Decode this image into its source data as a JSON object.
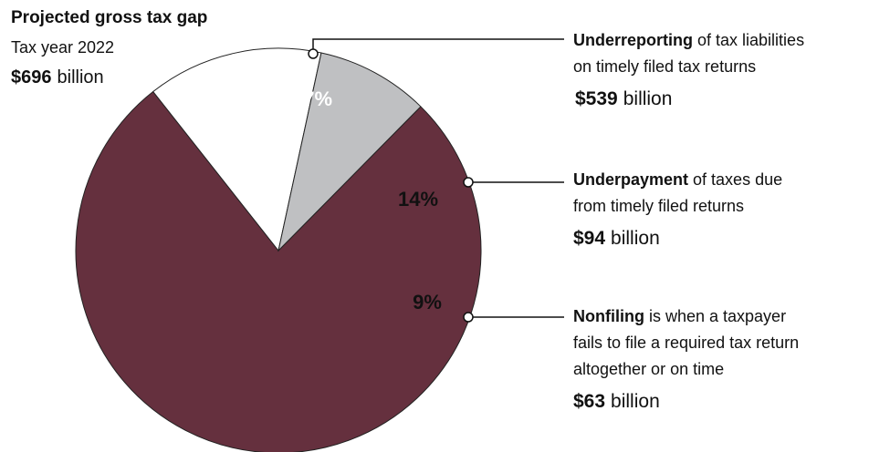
{
  "chart_data": {
    "type": "pie",
    "title": "Projected gross tax gap",
    "subtitle": "Tax year 2022",
    "total_amount": "$696",
    "total_unit": "billion",
    "categories": [
      "Underreporting",
      "Underpayment",
      "Nonfiling"
    ],
    "descriptions": [
      [
        "of tax liabilities",
        "on timely filed tax returns"
      ],
      [
        "of taxes due",
        "from timely filed returns"
      ],
      [
        "is when a taxpayer",
        "fails to file a required tax return",
        "altogether or on time"
      ]
    ],
    "amounts": [
      "$539",
      "$94",
      "$63"
    ],
    "amount_unit": "billion",
    "values": [
      77,
      14,
      9
    ],
    "value_labels": [
      "77%",
      "14%",
      "9%"
    ],
    "colors": [
      "#65303e",
      "#ffffff",
      "#bfc0c2"
    ]
  }
}
